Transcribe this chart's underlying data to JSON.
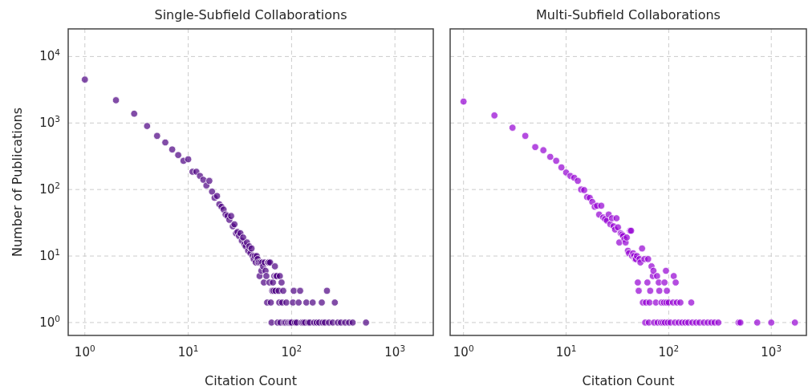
{
  "chart_data": [
    {
      "type": "scatter",
      "title": "Single-Subfield Collaborations",
      "xlabel": "Citation Count",
      "ylabel": "Number of Publications",
      "log": "xy",
      "grid": true,
      "marker": "circle",
      "xlim": [
        0.69,
        2350
      ],
      "ylim": [
        0.64,
        26000
      ],
      "xticks": [
        {
          "value": 1,
          "label": "10$^{0}$"
        },
        {
          "value": 10,
          "label": "10$^{1}$"
        },
        {
          "value": 100,
          "label": "10$^{2}$"
        },
        {
          "value": 1000,
          "label": "10$^{3}$"
        }
      ],
      "yticks": [
        {
          "value": 1,
          "label": "10$^{0}$"
        },
        {
          "value": 10,
          "label": "10$^{1}$"
        },
        {
          "value": 100,
          "label": "10$^{2}$"
        },
        {
          "value": 1000,
          "label": "10$^{3}$"
        },
        {
          "value": 10000,
          "label": "10$^{4}$"
        }
      ],
      "series": [
        {
          "color": "#4b0082",
          "x": [
            1,
            2,
            3,
            4,
            5,
            6,
            7,
            8,
            9,
            10,
            11,
            12,
            13,
            14,
            15,
            16,
            17,
            18,
            19,
            20,
            21,
            22,
            23,
            24,
            25,
            26,
            27,
            28,
            29,
            30,
            31,
            32,
            33,
            34,
            35,
            36,
            37,
            38,
            39,
            40,
            41,
            42,
            43,
            44,
            45,
            46,
            47,
            48,
            49,
            50,
            51,
            52,
            53,
            54,
            55,
            56,
            57,
            58,
            59,
            60,
            61,
            62,
            63,
            64,
            65,
            66,
            67,
            68,
            69,
            70,
            71,
            72,
            73,
            75,
            76,
            77,
            78,
            80,
            81,
            83,
            85,
            88,
            89,
            92,
            95,
            98,
            100,
            103,
            105,
            108,
            112,
            117,
            121,
            125,
            130,
            135,
            139,
            145,
            150,
            160,
            165,
            175,
            185,
            196,
            200,
            210,
            220,
            230,
            250,
            262,
            280,
            300,
            330,
            360,
            390,
            525
          ],
          "values": [
            4500,
            2200,
            1380,
            900,
            640,
            510,
            400,
            330,
            270,
            285,
            185,
            185,
            160,
            140,
            115,
            135,
            93,
            75,
            80,
            60,
            55,
            50,
            42,
            40,
            35,
            40,
            28,
            30,
            22,
            23,
            20,
            22,
            17,
            19,
            15,
            14,
            16,
            12,
            14,
            11,
            13,
            10,
            9,
            10,
            8,
            10,
            9,
            8,
            5,
            8,
            6,
            8,
            7,
            4,
            8,
            6,
            5,
            2,
            8,
            8,
            4,
            8,
            2,
            1,
            3,
            4,
            3,
            5,
            7,
            3,
            5,
            5,
            1,
            3,
            2,
            5,
            1,
            4,
            2,
            3,
            1,
            1,
            2,
            1,
            1,
            1,
            1,
            2,
            3,
            1,
            1,
            2,
            3,
            1,
            1,
            1,
            2,
            1,
            1,
            2,
            1,
            1,
            1,
            2,
            1,
            1,
            3,
            1,
            1,
            2,
            1,
            1,
            1,
            1,
            1,
            1
          ]
        }
      ]
    },
    {
      "type": "scatter",
      "title": "Multi-Subfield Collaborations",
      "xlabel": "Citation Count",
      "log": "xy",
      "grid": true,
      "marker": "circle",
      "tick_labels": "x",
      "xlim": [
        0.74,
        2200
      ],
      "ylim": [
        0.64,
        26000
      ],
      "xticks": [
        {
          "value": 1,
          "label": "10$^{0}$"
        },
        {
          "value": 10,
          "label": "10$^{1}$"
        },
        {
          "value": 100,
          "label": "10$^{2}$"
        },
        {
          "value": 1000,
          "label": "10$^{3}$"
        }
      ],
      "yticks": [
        {
          "value": 1,
          "label": null
        },
        {
          "value": 10,
          "label": null
        },
        {
          "value": 100,
          "label": null
        },
        {
          "value": 1000,
          "label": null
        },
        {
          "value": 10000,
          "label": null
        }
      ],
      "series": [
        {
          "color": "#9400d3",
          "x": [
            1,
            2,
            3,
            4,
            5,
            6,
            7,
            8,
            9,
            10,
            11,
            12,
            13,
            14,
            15,
            16,
            17,
            18,
            19,
            20,
            21,
            22,
            23,
            24,
            25,
            26,
            27,
            28,
            29,
            30,
            31,
            32,
            33,
            34,
            35,
            36,
            37,
            38,
            39,
            40,
            41,
            42,
            43,
            44,
            45,
            46,
            47,
            48,
            49,
            50,
            51,
            52,
            53,
            55,
            56,
            58,
            59,
            60,
            62,
            63,
            64,
            65,
            66,
            68,
            70,
            71,
            72,
            75,
            77,
            78,
            80,
            81,
            84,
            85,
            88,
            90,
            91,
            92,
            94,
            95,
            96,
            98,
            100,
            104,
            110,
            112,
            115,
            117,
            120,
            125,
            130,
            135,
            145,
            155,
            166,
            170,
            185,
            200,
            220,
            240,
            260,
            280,
            305,
            480,
            500,
            730,
            1000,
            1700
          ],
          "values": [
            2100,
            1300,
            850,
            640,
            435,
            390,
            310,
            270,
            215,
            180,
            160,
            150,
            135,
            100,
            98,
            77,
            75,
            65,
            55,
            57,
            42,
            57,
            38,
            36,
            34,
            42,
            30,
            37,
            28,
            25,
            37,
            27,
            16,
            22,
            21,
            20,
            18,
            16,
            19,
            12,
            11,
            24,
            24,
            10,
            11,
            10,
            9,
            9,
            10,
            4,
            3,
            9,
            8,
            13,
            2,
            9,
            1,
            2,
            4,
            9,
            1,
            2,
            3,
            7,
            5,
            6,
            1,
            2,
            5,
            1,
            4,
            3,
            1,
            2,
            1,
            2,
            4,
            1,
            6,
            2,
            3,
            1,
            2,
            1,
            2,
            5,
            1,
            4,
            2,
            1,
            2,
            1,
            1,
            1,
            2,
            1,
            1,
            1,
            1,
            1,
            1,
            1,
            1,
            1,
            1,
            1,
            1,
            1
          ]
        }
      ]
    }
  ]
}
